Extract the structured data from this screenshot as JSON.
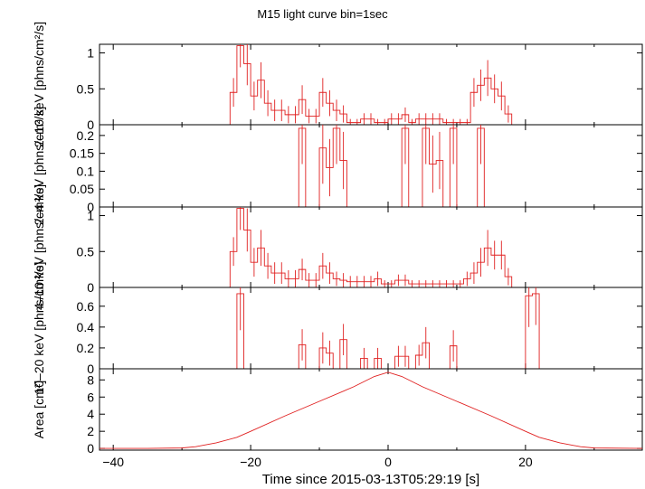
{
  "chart_data": {
    "type": "line",
    "title": "M15 light curve bin=1sec",
    "xlabel": "Time since 2015-03-13T05:29:19 [s]",
    "xlim": [
      -42,
      37
    ],
    "xticks": [
      -40,
      -20,
      0,
      20
    ],
    "panels": [
      {
        "ylabel": "2–10 keV [phns/cm²/s]",
        "ylim": [
          0,
          1.12
        ],
        "yticks": [
          {
            "v": 0,
            "label": "0"
          },
          {
            "v": 0.5,
            "label": "0.5"
          },
          {
            "v": 1,
            "label": "1"
          }
        ],
        "color": "#e02020",
        "x": [
          -42,
          -41,
          -40,
          -39,
          -38,
          -37,
          -36,
          -35,
          -34,
          -33,
          -32,
          -31,
          -30,
          -29,
          -28,
          -27,
          -26,
          -25,
          -24,
          -23,
          -22,
          -21,
          -20,
          -19,
          -18,
          -17,
          -16,
          -15,
          -14,
          -13,
          -12,
          -11,
          -10,
          -9,
          -8,
          -7,
          -6,
          -5,
          -4,
          -3,
          -2,
          -1,
          0,
          1,
          2,
          3,
          4,
          5,
          6,
          7,
          8,
          9,
          10,
          11,
          12,
          13,
          14,
          15,
          16,
          17,
          18,
          19,
          20,
          21,
          22,
          23,
          24,
          25,
          26,
          27,
          28,
          29,
          30,
          31,
          32,
          33,
          34,
          35,
          36
        ],
        "y": [
          0,
          0,
          0,
          0,
          0,
          0,
          0,
          0,
          0,
          0,
          0,
          0,
          0,
          0,
          0,
          0,
          0,
          0,
          0,
          0.45,
          1.1,
          0.85,
          0.4,
          0.62,
          0.3,
          0.2,
          0.2,
          0.14,
          0.14,
          0.35,
          0.12,
          0.12,
          0.45,
          0.3,
          0.2,
          0.15,
          0.03,
          0.03,
          0.08,
          0.08,
          0.03,
          0.03,
          0.08,
          0.08,
          0.14,
          0.03,
          0.08,
          0.08,
          0.08,
          0.08,
          0.03,
          0.03,
          0.03,
          0.03,
          0.45,
          0.55,
          0.65,
          0.5,
          0.4,
          0.15,
          0,
          0,
          0,
          0,
          0,
          0,
          0,
          0,
          0,
          0,
          0,
          0,
          0,
          0,
          0,
          0,
          0,
          0,
          0
        ],
        "err": [
          0,
          0,
          0,
          0,
          0,
          0,
          0,
          0,
          0,
          0,
          0,
          0,
          0,
          0,
          0,
          0,
          0,
          0,
          0,
          0.2,
          0.3,
          0.3,
          0.2,
          0.25,
          0.18,
          0.15,
          0.15,
          0.12,
          0.12,
          0.2,
          0.1,
          0.1,
          0.2,
          0.18,
          0.15,
          0.12,
          0.05,
          0.05,
          0.08,
          0.08,
          0.05,
          0.05,
          0.08,
          0.08,
          0.1,
          0.05,
          0.08,
          0.08,
          0.08,
          0.08,
          0.05,
          0.05,
          0.05,
          0.05,
          0.2,
          0.22,
          0.25,
          0.2,
          0.2,
          0.12,
          0,
          0,
          0,
          0,
          0,
          0,
          0,
          0,
          0,
          0,
          0,
          0,
          0,
          0,
          0,
          0,
          0,
          0,
          0
        ]
      },
      {
        "ylabel": "2–4 keV [phns/cm²/s]",
        "ylim": [
          0,
          0.23
        ],
        "yticks": [
          {
            "v": 0,
            "label": "0"
          },
          {
            "v": 0.05,
            "label": "0.05"
          },
          {
            "v": 0.1,
            "label": "0.1"
          },
          {
            "v": 0.15,
            "label": "0.15"
          },
          {
            "v": 0.2,
            "label": "0.2"
          }
        ],
        "color": "#e02020",
        "x": [
          -42,
          -41,
          -40,
          -39,
          -38,
          -37,
          -36,
          -35,
          -34,
          -33,
          -32,
          -31,
          -30,
          -29,
          -28,
          -27,
          -26,
          -25,
          -24,
          -23,
          -22,
          -21,
          -20,
          -19,
          -18,
          -17,
          -16,
          -15,
          -14,
          -13,
          -12,
          -11,
          -10,
          -9,
          -8,
          -7,
          -6,
          -5,
          -4,
          -3,
          -2,
          -1,
          0,
          1,
          2,
          3,
          4,
          5,
          6,
          7,
          8,
          9,
          10,
          11,
          12,
          13,
          14,
          15,
          16,
          17,
          18,
          19,
          20,
          21,
          22,
          23,
          24,
          25,
          26,
          27,
          28,
          29,
          30,
          31,
          32,
          33,
          34,
          35,
          36
        ],
        "y": [
          0,
          0,
          0,
          0,
          0,
          0,
          0,
          0,
          0,
          0,
          0,
          0,
          0,
          0,
          0,
          0,
          0,
          0,
          0,
          0,
          0,
          0,
          0,
          0,
          0,
          0,
          0,
          0,
          0,
          0.22,
          0,
          0,
          0.165,
          0.11,
          0.22,
          0.13,
          0,
          0,
          0,
          0,
          0,
          0,
          0,
          0,
          0.22,
          0,
          0,
          0.22,
          0.12,
          0.13,
          0,
          0.22,
          0,
          0,
          0,
          0.22,
          0,
          0,
          0,
          0,
          0,
          0,
          0,
          0,
          0,
          0,
          0,
          0,
          0,
          0,
          0,
          0,
          0,
          0,
          0,
          0,
          0,
          0,
          0
        ],
        "err": [
          0,
          0,
          0,
          0,
          0,
          0,
          0,
          0,
          0,
          0,
          0,
          0,
          0,
          0,
          0,
          0,
          0,
          0,
          0,
          0,
          0,
          0,
          0,
          0,
          0,
          0,
          0,
          0,
          0,
          0.1,
          0,
          0,
          0.1,
          0.08,
          0.1,
          0.08,
          0,
          0,
          0,
          0,
          0,
          0,
          0,
          0,
          0.1,
          0,
          0,
          0.1,
          0.08,
          0.08,
          0,
          0.1,
          0,
          0,
          0,
          0.1,
          0,
          0,
          0,
          0,
          0,
          0,
          0,
          0,
          0,
          0,
          0,
          0,
          0,
          0,
          0,
          0,
          0,
          0,
          0,
          0,
          0,
          0,
          0
        ]
      },
      {
        "ylabel": "4–10 keV [phns/cm²/s]",
        "ylim": [
          0,
          1.12
        ],
        "yticks": [
          {
            "v": 0,
            "label": "0"
          },
          {
            "v": 0.5,
            "label": "0.5"
          },
          {
            "v": 1,
            "label": "1"
          }
        ],
        "color": "#e02020",
        "x": [
          -42,
          -41,
          -40,
          -39,
          -38,
          -37,
          -36,
          -35,
          -34,
          -33,
          -32,
          -31,
          -30,
          -29,
          -28,
          -27,
          -26,
          -25,
          -24,
          -23,
          -22,
          -21,
          -20,
          -19,
          -18,
          -17,
          -16,
          -15,
          -14,
          -13,
          -12,
          -11,
          -10,
          -9,
          -8,
          -7,
          -6,
          -5,
          -4,
          -3,
          -2,
          -1,
          0,
          1,
          2,
          3,
          4,
          5,
          6,
          7,
          8,
          9,
          10,
          11,
          12,
          13,
          14,
          15,
          16,
          17,
          18,
          19,
          20,
          21,
          22,
          23,
          24,
          25,
          26,
          27,
          28,
          29,
          30,
          31,
          32,
          33,
          34,
          35,
          36
        ],
        "y": [
          0,
          0,
          0,
          0,
          0,
          0,
          0,
          0,
          0,
          0,
          0,
          0,
          0,
          0,
          0,
          0,
          0,
          0,
          0,
          0.5,
          1.1,
          0.8,
          0.35,
          0.55,
          0.3,
          0.2,
          0.2,
          0.12,
          0.12,
          0.25,
          0.1,
          0.1,
          0.3,
          0.2,
          0.12,
          0.1,
          0.08,
          0.08,
          0.08,
          0.08,
          0.12,
          0.05,
          0.05,
          0.1,
          0.1,
          0.05,
          0.05,
          0.05,
          0.05,
          0.05,
          0.05,
          0.05,
          0.05,
          0.12,
          0.2,
          0.35,
          0.55,
          0.45,
          0.45,
          0.15,
          0,
          0,
          0,
          0,
          0,
          0,
          0,
          0,
          0,
          0,
          0,
          0,
          0,
          0,
          0,
          0,
          0,
          0,
          0
        ],
        "err": [
          0,
          0,
          0,
          0,
          0,
          0,
          0,
          0,
          0,
          0,
          0,
          0,
          0,
          0,
          0,
          0,
          0,
          0,
          0,
          0.2,
          0.3,
          0.3,
          0.2,
          0.25,
          0.18,
          0.15,
          0.15,
          0.12,
          0.12,
          0.15,
          0.1,
          0.1,
          0.18,
          0.15,
          0.1,
          0.1,
          0.08,
          0.08,
          0.08,
          0.08,
          0.1,
          0.05,
          0.05,
          0.08,
          0.08,
          0.05,
          0.05,
          0.05,
          0.05,
          0.05,
          0.05,
          0.05,
          0.05,
          0.1,
          0.15,
          0.2,
          0.25,
          0.2,
          0.2,
          0.12,
          0,
          0,
          0,
          0,
          0,
          0,
          0,
          0,
          0,
          0,
          0,
          0,
          0,
          0,
          0,
          0,
          0,
          0,
          0
        ]
      },
      {
        "ylabel": "10–20 keV [phns/cm²/s]",
        "ylim": [
          0,
          0.78
        ],
        "yticks": [
          {
            "v": 0,
            "label": "0"
          },
          {
            "v": 0.2,
            "label": "0.2"
          },
          {
            "v": 0.4,
            "label": "0.4"
          },
          {
            "v": 0.6,
            "label": "0.6"
          }
        ],
        "color": "#e02020",
        "x": [
          -42,
          -41,
          -40,
          -39,
          -38,
          -37,
          -36,
          -35,
          -34,
          -33,
          -32,
          -31,
          -30,
          -29,
          -28,
          -27,
          -26,
          -25,
          -24,
          -23,
          -22,
          -21,
          -20,
          -19,
          -18,
          -17,
          -16,
          -15,
          -14,
          -13,
          -12,
          -11,
          -10,
          -9,
          -8,
          -7,
          -6,
          -5,
          -4,
          -3,
          -2,
          -1,
          0,
          1,
          2,
          3,
          4,
          5,
          6,
          7,
          8,
          9,
          10,
          11,
          12,
          13,
          14,
          15,
          16,
          17,
          18,
          19,
          20,
          21,
          22,
          23,
          24,
          25,
          26,
          27,
          28,
          29,
          30,
          31,
          32,
          33,
          34,
          35,
          36
        ],
        "y": [
          0,
          0,
          0,
          0,
          0,
          0,
          0,
          0,
          0,
          0,
          0,
          0,
          0,
          0,
          0,
          0,
          0,
          0,
          0,
          0,
          0.72,
          0,
          0,
          0,
          0,
          0,
          0,
          0,
          0,
          0.23,
          0,
          0,
          0.2,
          0.15,
          0,
          0.28,
          0,
          0,
          0.1,
          0,
          0.1,
          0,
          0,
          0.12,
          0.12,
          0,
          0.13,
          0.25,
          0,
          0,
          0,
          0.22,
          0,
          0,
          0,
          0,
          0,
          0,
          0,
          0,
          0,
          0,
          0.7,
          0.72,
          0,
          0,
          0,
          0,
          0,
          0,
          0,
          0,
          0,
          0,
          0,
          0,
          0,
          0,
          0
        ],
        "err": [
          0,
          0,
          0,
          0,
          0,
          0,
          0,
          0,
          0,
          0,
          0,
          0,
          0,
          0,
          0,
          0,
          0,
          0,
          0,
          0,
          0.35,
          0,
          0,
          0,
          0,
          0,
          0,
          0,
          0,
          0.15,
          0,
          0,
          0.15,
          0.12,
          0,
          0.15,
          0,
          0,
          0.1,
          0,
          0.1,
          0,
          0,
          0.1,
          0.1,
          0,
          0.1,
          0.15,
          0,
          0,
          0,
          0.15,
          0,
          0,
          0,
          0,
          0,
          0,
          0,
          0,
          0,
          0,
          0.3,
          0.3,
          0,
          0,
          0,
          0,
          0,
          0,
          0,
          0,
          0,
          0,
          0,
          0,
          0,
          0,
          0
        ]
      },
      {
        "ylabel": "Area [cm²]",
        "ylim": [
          -0.2,
          9.3
        ],
        "yticks": [
          {
            "v": 0,
            "label": "0"
          },
          {
            "v": 2,
            "label": "2"
          },
          {
            "v": 4,
            "label": "4"
          },
          {
            "v": 6,
            "label": "6"
          },
          {
            "v": 8,
            "label": "8"
          }
        ],
        "color": "#e02020",
        "line": true,
        "x": [
          -42,
          -35,
          -30,
          -28,
          -25,
          -22,
          -20,
          -15,
          -10,
          -5,
          -2,
          0,
          2,
          5,
          10,
          15,
          20,
          22,
          25,
          28,
          30,
          37
        ],
        "y": [
          0,
          0,
          0.05,
          0.2,
          0.65,
          1.3,
          2.0,
          3.8,
          5.5,
          7.2,
          8.4,
          8.9,
          8.4,
          7.2,
          5.5,
          3.8,
          2.0,
          1.3,
          0.65,
          0.2,
          0.05,
          0
        ]
      }
    ]
  }
}
